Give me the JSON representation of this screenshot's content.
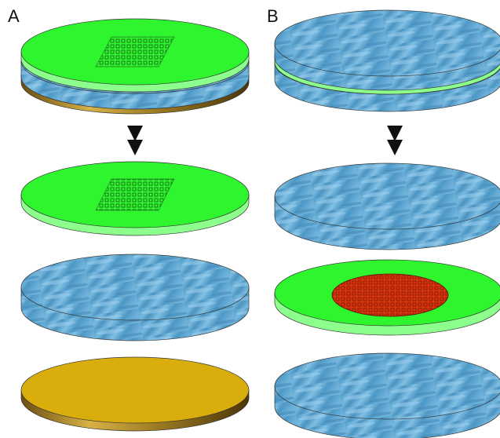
{
  "labels": {
    "a": "A",
    "b": "B"
  }
}
